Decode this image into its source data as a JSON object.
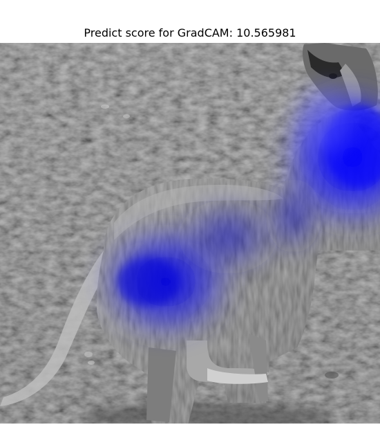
{
  "figure": {
    "title": "Predict score for GradCAM: 10.565981"
  },
  "image": {
    "subject": "dog",
    "colormap": "blue",
    "colors": {
      "ground": "#6f6f6f",
      "dog": "#7a7a7a",
      "heat": "#0000ff"
    }
  }
}
